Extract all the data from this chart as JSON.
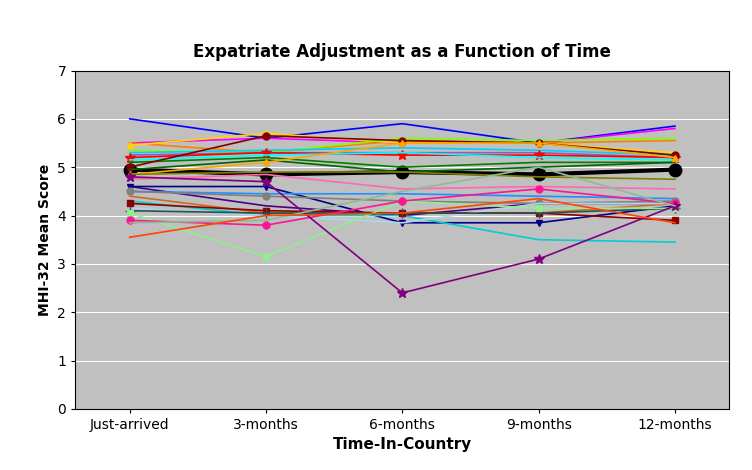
{
  "title": "Expatriate Adjustment as a Function of Time",
  "xlabel": "Time-In-Country",
  "ylabel": "MHI-32 Mean Score",
  "x_labels": [
    "Just-arrived",
    "3-months",
    "6-months",
    "9-months",
    "12-months"
  ],
  "ylim": [
    0,
    7
  ],
  "yticks": [
    0,
    1,
    2,
    3,
    4,
    5,
    6,
    7
  ],
  "background_color": "#C0C0C0",
  "fig_bg": "#ffffff",
  "series": [
    {
      "color": "#000000",
      "marker": "o",
      "lw": 3.0,
      "ms": 9,
      "values": [
        4.95,
        4.85,
        4.9,
        4.85,
        4.95
      ]
    },
    {
      "color": "#0000FF",
      "marker": "none",
      "lw": 1.2,
      "ms": 5,
      "values": [
        6.0,
        5.6,
        5.9,
        5.5,
        5.85
      ]
    },
    {
      "color": "#FF00FF",
      "marker": "none",
      "lw": 1.2,
      "ms": 5,
      "values": [
        5.5,
        5.6,
        5.5,
        5.5,
        5.8
      ]
    },
    {
      "color": "#FF8000",
      "marker": "none",
      "lw": 1.2,
      "ms": 5,
      "values": [
        5.5,
        5.3,
        5.55,
        5.5,
        5.55
      ]
    },
    {
      "color": "#FFD700",
      "marker": "^",
      "lw": 1.2,
      "ms": 5,
      "values": [
        5.45,
        5.7,
        5.5,
        5.5,
        5.3
      ]
    },
    {
      "color": "#80FF00",
      "marker": "none",
      "lw": 1.2,
      "ms": 5,
      "values": [
        5.35,
        5.3,
        5.6,
        5.55,
        5.6
      ]
    },
    {
      "color": "#00CFFF",
      "marker": "none",
      "lw": 1.2,
      "ms": 5,
      "values": [
        5.3,
        5.35,
        5.4,
        5.35,
        5.25
      ]
    },
    {
      "color": "#9B59B6",
      "marker": "none",
      "lw": 1.2,
      "ms": 5,
      "values": [
        5.25,
        5.3,
        5.3,
        5.3,
        5.2
      ]
    },
    {
      "color": "#FF0000",
      "marker": "*",
      "lw": 1.2,
      "ms": 7,
      "values": [
        5.2,
        5.3,
        5.25,
        5.25,
        5.2
      ]
    },
    {
      "color": "#00FFFF",
      "marker": "none",
      "lw": 1.2,
      "ms": 5,
      "values": [
        5.15,
        5.25,
        5.3,
        5.2,
        5.15
      ]
    },
    {
      "color": "#008000",
      "marker": "none",
      "lw": 1.2,
      "ms": 5,
      "values": [
        5.1,
        5.2,
        5.0,
        5.1,
        5.1
      ]
    },
    {
      "color": "#800000",
      "marker": "o",
      "lw": 1.2,
      "ms": 5,
      "values": [
        5.0,
        5.65,
        5.55,
        5.5,
        5.25
      ]
    },
    {
      "color": "#006400",
      "marker": "none",
      "lw": 1.2,
      "ms": 5,
      "values": [
        4.95,
        5.15,
        4.9,
        5.0,
        5.1
      ]
    },
    {
      "color": "#FFA500",
      "marker": "^",
      "lw": 1.2,
      "ms": 5,
      "values": [
        4.85,
        5.1,
        5.5,
        5.5,
        5.2
      ]
    },
    {
      "color": "#808000",
      "marker": "none",
      "lw": 1.2,
      "ms": 5,
      "values": [
        4.85,
        4.9,
        4.9,
        4.8,
        4.75
      ]
    },
    {
      "color": "#FF69B4",
      "marker": "none",
      "lw": 1.2,
      "ms": 5,
      "values": [
        4.75,
        4.85,
        4.55,
        4.6,
        4.55
      ]
    },
    {
      "color": "#4B0082",
      "marker": "none",
      "lw": 1.2,
      "ms": 5,
      "values": [
        4.6,
        4.2,
        4.0,
        4.25,
        4.25
      ]
    },
    {
      "color": "#00008B",
      "marker": "v",
      "lw": 1.2,
      "ms": 5,
      "values": [
        4.6,
        4.6,
        3.85,
        3.85,
        4.2
      ]
    },
    {
      "color": "#1E90FF",
      "marker": "none",
      "lw": 1.2,
      "ms": 5,
      "values": [
        4.5,
        4.45,
        4.45,
        4.4,
        4.35
      ]
    },
    {
      "color": "#808080",
      "marker": "o",
      "lw": 1.2,
      "ms": 5,
      "values": [
        4.5,
        4.4,
        4.3,
        4.25,
        4.3
      ]
    },
    {
      "color": "#D2691E",
      "marker": "none",
      "lw": 1.2,
      "ms": 5,
      "values": [
        4.4,
        4.05,
        4.05,
        4.05,
        4.25
      ]
    },
    {
      "color": "#00CED1",
      "marker": "none",
      "lw": 1.2,
      "ms": 5,
      "values": [
        4.3,
        4.0,
        4.0,
        3.5,
        3.45
      ]
    },
    {
      "color": "#8B0000",
      "marker": "s",
      "lw": 1.2,
      "ms": 5,
      "values": [
        4.25,
        4.1,
        4.05,
        4.05,
        3.9
      ]
    },
    {
      "color": "#ADD8E6",
      "marker": "none",
      "lw": 1.2,
      "ms": 5,
      "values": [
        4.15,
        4.0,
        3.85,
        4.25,
        4.25
      ]
    },
    {
      "color": "#2F4F4F",
      "marker": "+",
      "lw": 1.2,
      "ms": 7,
      "values": [
        4.1,
        4.05,
        4.05,
        4.05,
        4.15
      ]
    },
    {
      "color": "#90EE90",
      "marker": "s",
      "lw": 1.2,
      "ms": 5,
      "values": [
        4.05,
        3.15,
        4.3,
        4.15,
        4.15
      ]
    },
    {
      "color": "#FF1493",
      "marker": "o",
      "lw": 1.2,
      "ms": 5,
      "values": [
        3.9,
        3.8,
        4.3,
        4.55,
        4.25
      ]
    },
    {
      "color": "#800080",
      "marker": "*",
      "lw": 1.2,
      "ms": 7,
      "values": [
        4.8,
        4.7,
        2.4,
        3.1,
        4.2
      ]
    },
    {
      "color": "#8FBC8F",
      "marker": "none",
      "lw": 1.2,
      "ms": 5,
      "values": [
        3.85,
        3.9,
        4.5,
        5.0,
        4.2
      ]
    },
    {
      "color": "#FF4500",
      "marker": "none",
      "lw": 1.2,
      "ms": 5,
      "values": [
        3.55,
        4.0,
        4.05,
        4.35,
        3.85
      ]
    }
  ]
}
